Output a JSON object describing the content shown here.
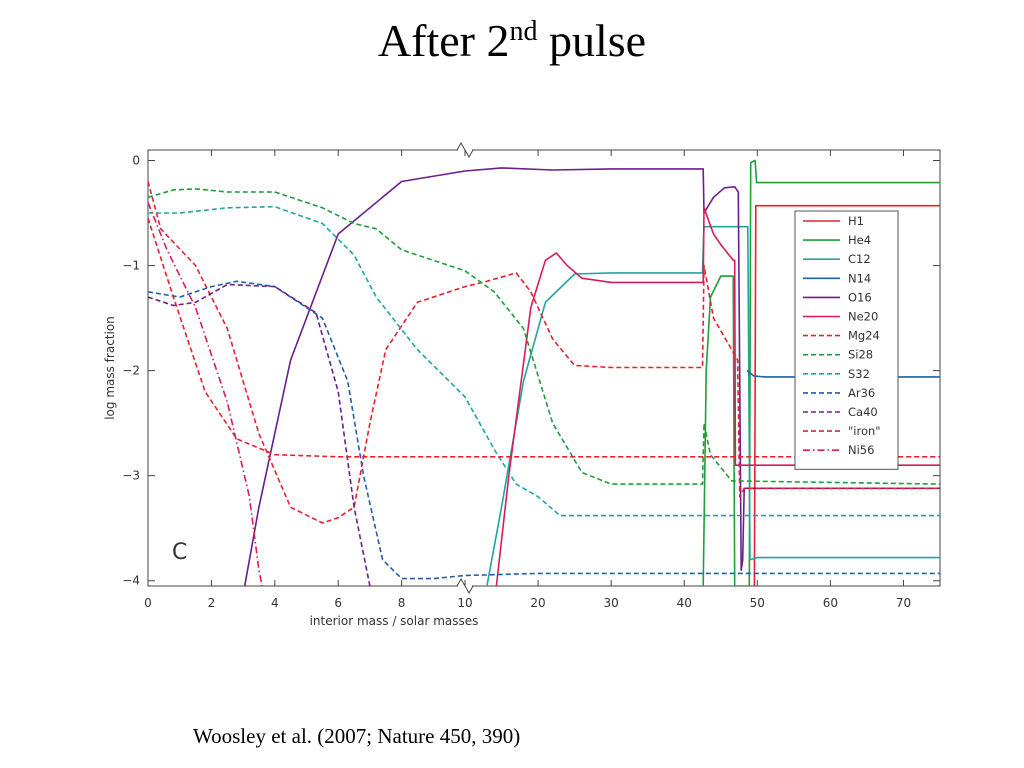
{
  "slide": {
    "title_main": "After 2",
    "title_sup": "nd",
    "title_tail": " pulse",
    "citation": "Woosley et al. (2007; Nature 450, 390)"
  },
  "chart_data": {
    "type": "line",
    "panel_label": "C",
    "xlabel": "interior mass / solar masses",
    "ylabel": "log mass fraction",
    "x_break": {
      "at": 10,
      "left_range": [
        0,
        10
      ],
      "right_range": [
        10,
        75
      ]
    },
    "xlim": [
      0,
      75
    ],
    "ylim": [
      -4.05,
      0.1
    ],
    "x_ticks_left": [
      0,
      2,
      4,
      6,
      8
    ],
    "x_ticks_right": [
      10,
      20,
      30,
      40,
      50,
      60,
      70
    ],
    "y_ticks": [
      0,
      -1,
      -2,
      -3,
      -4
    ],
    "legend_position": "right",
    "grid": false,
    "series": [
      {
        "name": "H1",
        "color": "#e8212e",
        "dash": "solid",
        "points": [
          [
            49.6,
            -4.05
          ],
          [
            49.8,
            -0.43
          ],
          [
            75,
            -0.43
          ]
        ]
      },
      {
        "name": "He4",
        "color": "#1f9e3a",
        "dash": "solid",
        "points": [
          [
            42.6,
            -4.05
          ],
          [
            43.0,
            -2.0
          ],
          [
            43.6,
            -1.3
          ],
          [
            45,
            -1.1
          ],
          [
            46.7,
            -1.1
          ],
          [
            46.9,
            -4.05
          ],
          [
            48.9,
            -4.05
          ],
          [
            49.1,
            -0.02
          ],
          [
            49.7,
            0.0
          ],
          [
            49.9,
            -0.21
          ],
          [
            75,
            -0.21
          ]
        ]
      },
      {
        "name": "C12",
        "color": "#21a5a0",
        "dash": "solid",
        "points": [
          [
            13.0,
            -4.05
          ],
          [
            15,
            -3.3
          ],
          [
            18,
            -2.1
          ],
          [
            21,
            -1.35
          ],
          [
            25,
            -1.08
          ],
          [
            30,
            -1.07
          ],
          [
            42.5,
            -1.07
          ],
          [
            42.7,
            -0.63
          ],
          [
            46.7,
            -0.63
          ],
          [
            48.7,
            -0.63
          ],
          [
            49.0,
            -3.8
          ],
          [
            50,
            -3.78
          ],
          [
            75,
            -3.78
          ]
        ]
      },
      {
        "name": "N14",
        "color": "#1e5fae",
        "dash": "solid",
        "points": [
          [
            48.6,
            -2.0
          ],
          [
            49.5,
            -2.05
          ],
          [
            51,
            -2.06
          ],
          [
            75,
            -2.06
          ]
        ]
      },
      {
        "name": "O16",
        "color": "#6a1f8a",
        "dash": "solid",
        "points": [
          [
            3.05,
            -4.05
          ],
          [
            3.5,
            -3.3
          ],
          [
            4.5,
            -1.9
          ],
          [
            6.0,
            -0.7
          ],
          [
            8.0,
            -0.2
          ],
          [
            10,
            -0.1
          ],
          [
            15,
            -0.07
          ],
          [
            22,
            -0.09
          ],
          [
            30,
            -0.08
          ],
          [
            42.6,
            -0.08
          ],
          [
            42.7,
            -0.5
          ],
          [
            44,
            -0.35
          ],
          [
            45.5,
            -0.26
          ],
          [
            46.9,
            -0.25
          ],
          [
            47.4,
            -0.3
          ],
          [
            47.8,
            -3.9
          ],
          [
            48.0,
            -3.8
          ],
          [
            48.2,
            -3.12
          ],
          [
            75,
            -3.12
          ]
        ]
      },
      {
        "name": "Ne20",
        "color": "#d81c5c",
        "dash": "solid",
        "points": [
          [
            14.3,
            -4.05
          ],
          [
            16,
            -3.0
          ],
          [
            19,
            -1.4
          ],
          [
            21,
            -0.95
          ],
          [
            22.5,
            -0.88
          ],
          [
            24,
            -1.0
          ],
          [
            26,
            -1.12
          ],
          [
            30,
            -1.16
          ],
          [
            42.6,
            -1.16
          ],
          [
            42.7,
            -0.45
          ],
          [
            44,
            -0.7
          ],
          [
            45,
            -0.8
          ],
          [
            46.7,
            -0.95
          ],
          [
            46.9,
            -0.95
          ],
          [
            47.0,
            -2.9
          ],
          [
            75,
            -2.9
          ]
        ]
      },
      {
        "name": "Mg24",
        "color": "#e8212e",
        "dash": "dashed",
        "points": [
          [
            0.0,
            -0.2
          ],
          [
            0.4,
            -0.65
          ],
          [
            1.5,
            -1.0
          ],
          [
            2.5,
            -1.6
          ],
          [
            3.5,
            -2.6
          ],
          [
            4.5,
            -3.3
          ],
          [
            5.5,
            -3.45
          ],
          [
            6.0,
            -3.4
          ],
          [
            6.5,
            -3.3
          ],
          [
            7.0,
            -2.5
          ],
          [
            7.5,
            -1.8
          ],
          [
            8.5,
            -1.35
          ],
          [
            10,
            -1.2
          ],
          [
            13,
            -1.15
          ],
          [
            17,
            -1.07
          ],
          [
            19,
            -1.25
          ],
          [
            22,
            -1.7
          ],
          [
            25,
            -1.95
          ],
          [
            30,
            -1.97
          ],
          [
            42.5,
            -1.97
          ],
          [
            42.7,
            -1.0
          ],
          [
            44,
            -1.5
          ],
          [
            46.5,
            -1.8
          ],
          [
            47.3,
            -1.9
          ],
          [
            47.6,
            -3.2
          ],
          [
            48.2,
            -3.12
          ],
          [
            75,
            -3.12
          ]
        ]
      },
      {
        "name": "Si28",
        "color": "#1f9e3a",
        "dash": "dashed",
        "points": [
          [
            0.0,
            -0.35
          ],
          [
            0.8,
            -0.28
          ],
          [
            1.5,
            -0.27
          ],
          [
            2.5,
            -0.3
          ],
          [
            4.0,
            -0.3
          ],
          [
            5.5,
            -0.45
          ],
          [
            6.5,
            -0.6
          ],
          [
            7.2,
            -0.65
          ],
          [
            8.0,
            -0.85
          ],
          [
            10,
            -1.05
          ],
          [
            14,
            -1.25
          ],
          [
            18,
            -1.6
          ],
          [
            22,
            -2.5
          ],
          [
            26,
            -2.97
          ],
          [
            30,
            -3.08
          ],
          [
            42.5,
            -3.08
          ],
          [
            42.7,
            -2.5
          ],
          [
            43.6,
            -2.8
          ],
          [
            46.5,
            -3.05
          ],
          [
            75,
            -3.08
          ]
        ]
      },
      {
        "name": "S32",
        "color": "#21a5a0",
        "dash": "dashed",
        "points": [
          [
            0.0,
            -0.5
          ],
          [
            1.0,
            -0.5
          ],
          [
            2.5,
            -0.45
          ],
          [
            4.0,
            -0.44
          ],
          [
            5.5,
            -0.6
          ],
          [
            6.5,
            -0.9
          ],
          [
            7.2,
            -1.3
          ],
          [
            8.5,
            -1.8
          ],
          [
            10,
            -2.25
          ],
          [
            14,
            -2.75
          ],
          [
            17,
            -3.08
          ],
          [
            20,
            -3.2
          ],
          [
            23,
            -3.38
          ],
          [
            30,
            -3.38
          ],
          [
            75,
            -3.38
          ]
        ]
      },
      {
        "name": "Ar36",
        "color": "#1e5fae",
        "dash": "dashed",
        "points": [
          [
            0.0,
            -1.25
          ],
          [
            1.0,
            -1.3
          ],
          [
            2.0,
            -1.2
          ],
          [
            2.8,
            -1.15
          ],
          [
            4.0,
            -1.2
          ],
          [
            5.5,
            -1.5
          ],
          [
            6.3,
            -2.1
          ],
          [
            6.8,
            -3.0
          ],
          [
            7.4,
            -3.8
          ],
          [
            8.0,
            -3.98
          ],
          [
            9.0,
            -3.98
          ],
          [
            10,
            -3.95
          ],
          [
            20,
            -3.93
          ],
          [
            75,
            -3.93
          ]
        ]
      },
      {
        "name": "Ca40",
        "color": "#6a1f8a",
        "dash": "dashed",
        "points": [
          [
            0.0,
            -1.3
          ],
          [
            0.8,
            -1.38
          ],
          [
            1.5,
            -1.35
          ],
          [
            2.5,
            -1.18
          ],
          [
            4.0,
            -1.2
          ],
          [
            5.3,
            -1.45
          ],
          [
            6.0,
            -2.2
          ],
          [
            6.5,
            -3.3
          ],
          [
            7.0,
            -4.05
          ]
        ]
      },
      {
        "name": "\"iron\"",
        "color": "#e8212e",
        "dash": "dashed",
        "points": [
          [
            0.0,
            -0.55
          ],
          [
            0.8,
            -1.3
          ],
          [
            1.8,
            -2.2
          ],
          [
            2.8,
            -2.65
          ],
          [
            4.0,
            -2.8
          ],
          [
            6.0,
            -2.82
          ],
          [
            10,
            -2.82
          ],
          [
            75,
            -2.82
          ]
        ]
      },
      {
        "name": "Ni56",
        "color": "#d81c5c",
        "dash": "dashdot",
        "points": [
          [
            0.0,
            -0.4
          ],
          [
            0.6,
            -0.85
          ],
          [
            1.5,
            -1.4
          ],
          [
            2.5,
            -2.3
          ],
          [
            3.2,
            -3.2
          ],
          [
            3.5,
            -3.9
          ],
          [
            3.6,
            -4.05
          ]
        ]
      }
    ]
  }
}
